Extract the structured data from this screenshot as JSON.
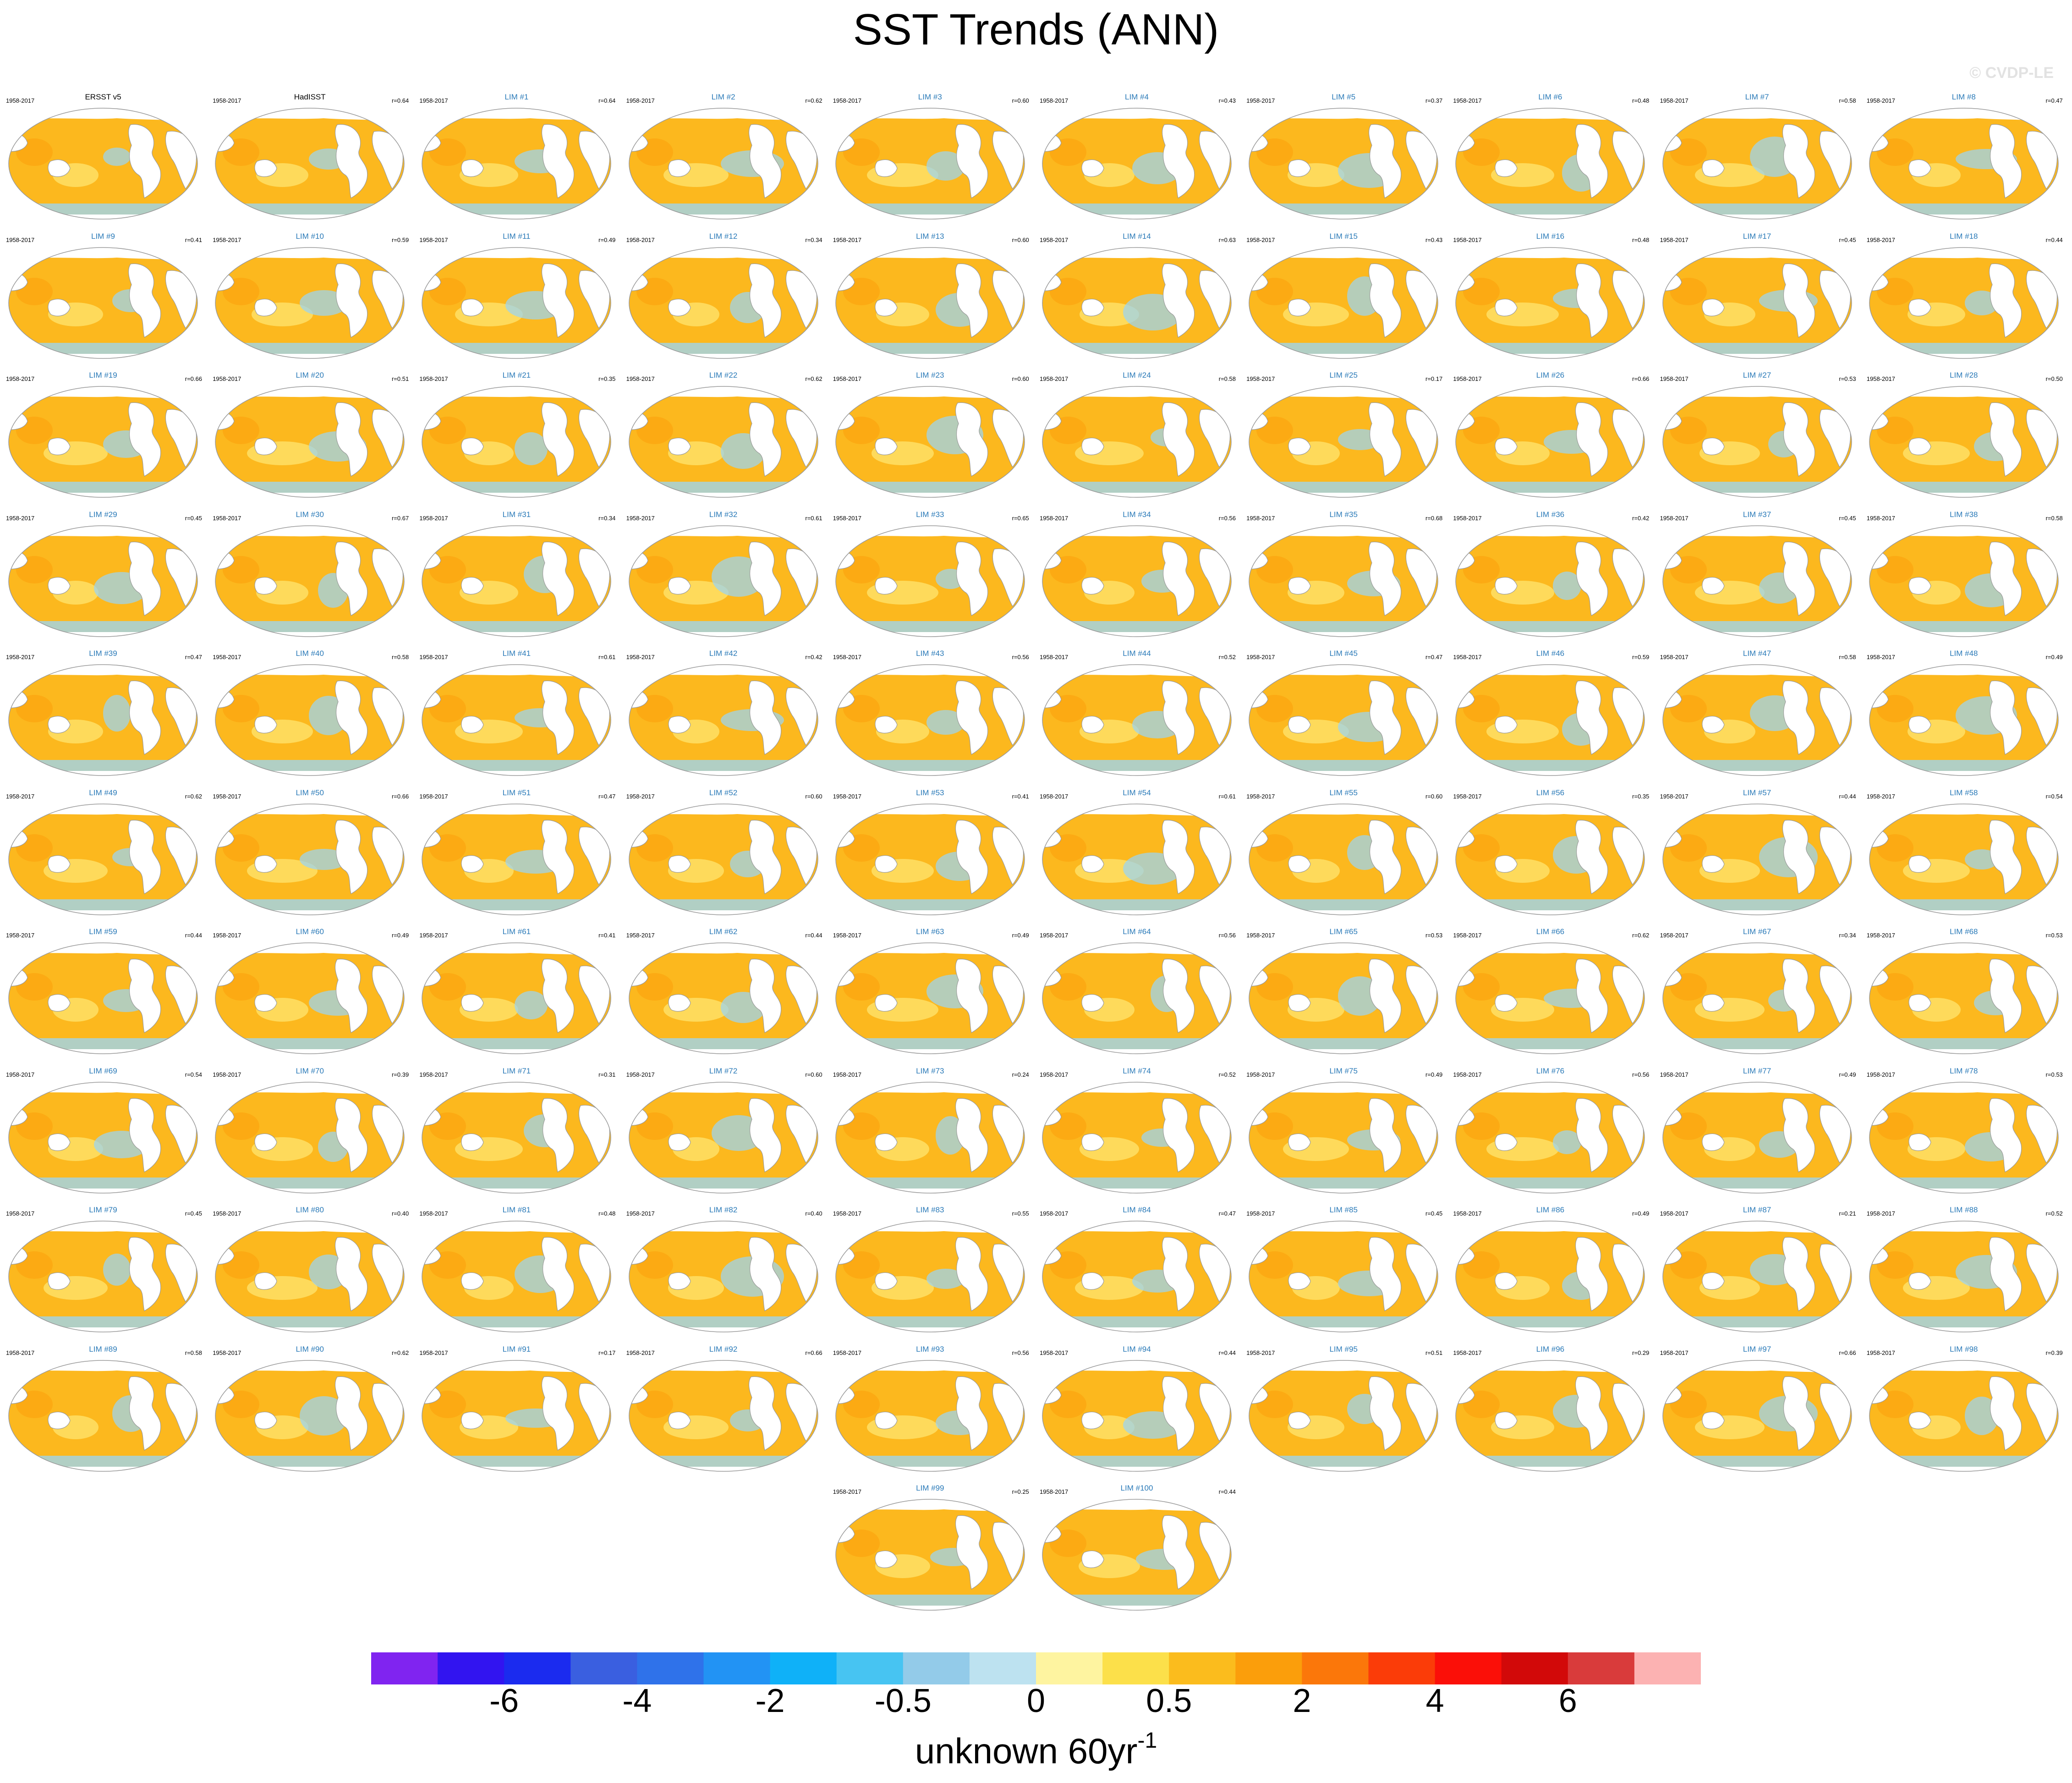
{
  "title": "SST Trends (ANN)",
  "watermark": "© CVDP-LE",
  "period": "1958-2017",
  "panels": [
    {
      "title": "ERSST v5",
      "corr": "",
      "obs": true
    },
    {
      "title": "HadISST",
      "corr": "r=0.64",
      "obs": true
    },
    {
      "title": "LIM #1",
      "corr": "r=0.64"
    },
    {
      "title": "LIM #2",
      "corr": "r=0.62"
    },
    {
      "title": "LIM #3",
      "corr": "r=0.60"
    },
    {
      "title": "LIM #4",
      "corr": "r=0.43"
    },
    {
      "title": "LIM #5",
      "corr": "r=0.37"
    },
    {
      "title": "LIM #6",
      "corr": "r=0.48"
    },
    {
      "title": "LIM #7",
      "corr": "r=0.58"
    },
    {
      "title": "LIM #8",
      "corr": "r=0.47"
    },
    {
      "title": "LIM #9",
      "corr": "r=0.41"
    },
    {
      "title": "LIM #10",
      "corr": "r=0.59"
    },
    {
      "title": "LIM #11",
      "corr": "r=0.49"
    },
    {
      "title": "LIM #12",
      "corr": "r=0.34"
    },
    {
      "title": "LIM #13",
      "corr": "r=0.60"
    },
    {
      "title": "LIM #14",
      "corr": "r=0.63"
    },
    {
      "title": "LIM #15",
      "corr": "r=0.43"
    },
    {
      "title": "LIM #16",
      "corr": "r=0.48"
    },
    {
      "title": "LIM #17",
      "corr": "r=0.45"
    },
    {
      "title": "LIM #18",
      "corr": "r=0.44"
    },
    {
      "title": "LIM #19",
      "corr": "r=0.66"
    },
    {
      "title": "LIM #20",
      "corr": "r=0.51"
    },
    {
      "title": "LIM #21",
      "corr": "r=0.35"
    },
    {
      "title": "LIM #22",
      "corr": "r=0.62"
    },
    {
      "title": "LIM #23",
      "corr": "r=0.60"
    },
    {
      "title": "LIM #24",
      "corr": "r=0.58"
    },
    {
      "title": "LIM #25",
      "corr": "r=0.17"
    },
    {
      "title": "LIM #26",
      "corr": "r=0.66"
    },
    {
      "title": "LIM #27",
      "corr": "r=0.53"
    },
    {
      "title": "LIM #28",
      "corr": "r=0.50"
    },
    {
      "title": "LIM #29",
      "corr": "r=0.45"
    },
    {
      "title": "LIM #30",
      "corr": "r=0.67"
    },
    {
      "title": "LIM #31",
      "corr": "r=0.34"
    },
    {
      "title": "LIM #32",
      "corr": "r=0.61"
    },
    {
      "title": "LIM #33",
      "corr": "r=0.65"
    },
    {
      "title": "LIM #34",
      "corr": "r=0.56"
    },
    {
      "title": "LIM #35",
      "corr": "r=0.68"
    },
    {
      "title": "LIM #36",
      "corr": "r=0.42"
    },
    {
      "title": "LIM #37",
      "corr": "r=0.45"
    },
    {
      "title": "LIM #38",
      "corr": "r=0.58"
    },
    {
      "title": "LIM #39",
      "corr": "r=0.47"
    },
    {
      "title": "LIM #40",
      "corr": "r=0.58"
    },
    {
      "title": "LIM #41",
      "corr": "r=0.61"
    },
    {
      "title": "LIM #42",
      "corr": "r=0.42"
    },
    {
      "title": "LIM #43",
      "corr": "r=0.56"
    },
    {
      "title": "LIM #44",
      "corr": "r=0.52"
    },
    {
      "title": "LIM #45",
      "corr": "r=0.47"
    },
    {
      "title": "LIM #46",
      "corr": "r=0.59"
    },
    {
      "title": "LIM #47",
      "corr": "r=0.58"
    },
    {
      "title": "LIM #48",
      "corr": "r=0.49"
    },
    {
      "title": "LIM #49",
      "corr": "r=0.62"
    },
    {
      "title": "LIM #50",
      "corr": "r=0.66"
    },
    {
      "title": "LIM #51",
      "corr": "r=0.47"
    },
    {
      "title": "LIM #52",
      "corr": "r=0.60"
    },
    {
      "title": "LIM #53",
      "corr": "r=0.41"
    },
    {
      "title": "LIM #54",
      "corr": "r=0.61"
    },
    {
      "title": "LIM #55",
      "corr": "r=0.60"
    },
    {
      "title": "LIM #56",
      "corr": "r=0.35"
    },
    {
      "title": "LIM #57",
      "corr": "r=0.44"
    },
    {
      "title": "LIM #58",
      "corr": "r=0.54"
    },
    {
      "title": "LIM #59",
      "corr": "r=0.44"
    },
    {
      "title": "LIM #60",
      "corr": "r=0.49"
    },
    {
      "title": "LIM #61",
      "corr": "r=0.41"
    },
    {
      "title": "LIM #62",
      "corr": "r=0.44"
    },
    {
      "title": "LIM #63",
      "corr": "r=0.49"
    },
    {
      "title": "LIM #64",
      "corr": "r=0.56"
    },
    {
      "title": "LIM #65",
      "corr": "r=0.53"
    },
    {
      "title": "LIM #66",
      "corr": "r=0.62"
    },
    {
      "title": "LIM #67",
      "corr": "r=0.34"
    },
    {
      "title": "LIM #68",
      "corr": "r=0.53"
    },
    {
      "title": "LIM #69",
      "corr": "r=0.54"
    },
    {
      "title": "LIM #70",
      "corr": "r=0.39"
    },
    {
      "title": "LIM #71",
      "corr": "r=0.31"
    },
    {
      "title": "LIM #72",
      "corr": "r=0.60"
    },
    {
      "title": "LIM #73",
      "corr": "r=0.24"
    },
    {
      "title": "LIM #74",
      "corr": "r=0.52"
    },
    {
      "title": "LIM #75",
      "corr": "r=0.49"
    },
    {
      "title": "LIM #76",
      "corr": "r=0.56"
    },
    {
      "title": "LIM #77",
      "corr": "r=0.49"
    },
    {
      "title": "LIM #78",
      "corr": "r=0.53"
    },
    {
      "title": "LIM #79",
      "corr": "r=0.45"
    },
    {
      "title": "LIM #80",
      "corr": "r=0.40"
    },
    {
      "title": "LIM #81",
      "corr": "r=0.48"
    },
    {
      "title": "LIM #82",
      "corr": "r=0.40"
    },
    {
      "title": "LIM #83",
      "corr": "r=0.55"
    },
    {
      "title": "LIM #84",
      "corr": "r=0.47"
    },
    {
      "title": "LIM #85",
      "corr": "r=0.45"
    },
    {
      "title": "LIM #86",
      "corr": "r=0.49"
    },
    {
      "title": "LIM #87",
      "corr": "r=0.21"
    },
    {
      "title": "LIM #88",
      "corr": "r=0.52"
    },
    {
      "title": "LIM #89",
      "corr": "r=0.58"
    },
    {
      "title": "LIM #90",
      "corr": "r=0.62"
    },
    {
      "title": "LIM #91",
      "corr": "r=0.17"
    },
    {
      "title": "LIM #92",
      "corr": "r=0.66"
    },
    {
      "title": "LIM #93",
      "corr": "r=0.56"
    },
    {
      "title": "LIM #94",
      "corr": "r=0.44"
    },
    {
      "title": "LIM #95",
      "corr": "r=0.51"
    },
    {
      "title": "LIM #96",
      "corr": "r=0.29"
    },
    {
      "title": "LIM #97",
      "corr": "r=0.66"
    },
    {
      "title": "LIM #98",
      "corr": "r=0.39"
    },
    {
      "title": "LIM #99",
      "corr": "r=0.25"
    },
    {
      "title": "LIM #100",
      "corr": "r=0.44"
    }
  ],
  "colors": {
    "obs_title": "#000000",
    "lim_title": "#2a7ab8",
    "ocean_warm": "#fcb81e",
    "land": "#ffffff",
    "coast": "#9a9a9a",
    "ocean_cool": "#9dd4ee"
  },
  "colorbar": {
    "colors": [
      "#8024f0",
      "#3214f0",
      "#1b2bef",
      "#3a5fe0",
      "#2f72ea",
      "#2293f4",
      "#0fb1f8",
      "#47c4f2",
      "#93cbe9",
      "#bde2f0",
      "#fef4a0",
      "#fce04a",
      "#fbbc1d",
      "#fb9e0b",
      "#fb770a",
      "#fb3c08",
      "#fb0f08",
      "#d20909",
      "#d93b3b",
      "#fcb2b2"
    ],
    "labels": [
      {
        "text": "-6",
        "boundary": 2
      },
      {
        "text": "-4",
        "boundary": 4
      },
      {
        "text": "-2",
        "boundary": 6
      },
      {
        "text": "-0.5",
        "boundary": 8
      },
      {
        "text": "0",
        "boundary": 10
      },
      {
        "text": "0.5",
        "boundary": 12
      },
      {
        "text": "2",
        "boundary": 14
      },
      {
        "text": "4",
        "boundary": 16
      },
      {
        "text": "6",
        "boundary": 18
      }
    ],
    "units": "unknown 60yr",
    "units_exponent": "-1"
  }
}
